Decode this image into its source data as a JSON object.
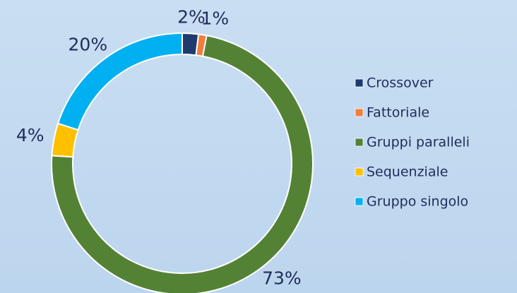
{
  "chart_data": {
    "type": "donut",
    "categories": [
      "Crossover",
      "Fattoriale",
      "Gruppi paralleli",
      "Sequenziale",
      "Gruppo singolo"
    ],
    "values": [
      2,
      1,
      73,
      4,
      20
    ],
    "value_labels": [
      "2%",
      "1%",
      "73%",
      "4%",
      "20%"
    ],
    "colors": [
      "#1f3a6e",
      "#f07f3c",
      "#548235",
      "#ffc000",
      "#00b0f0"
    ],
    "legend": "right"
  }
}
